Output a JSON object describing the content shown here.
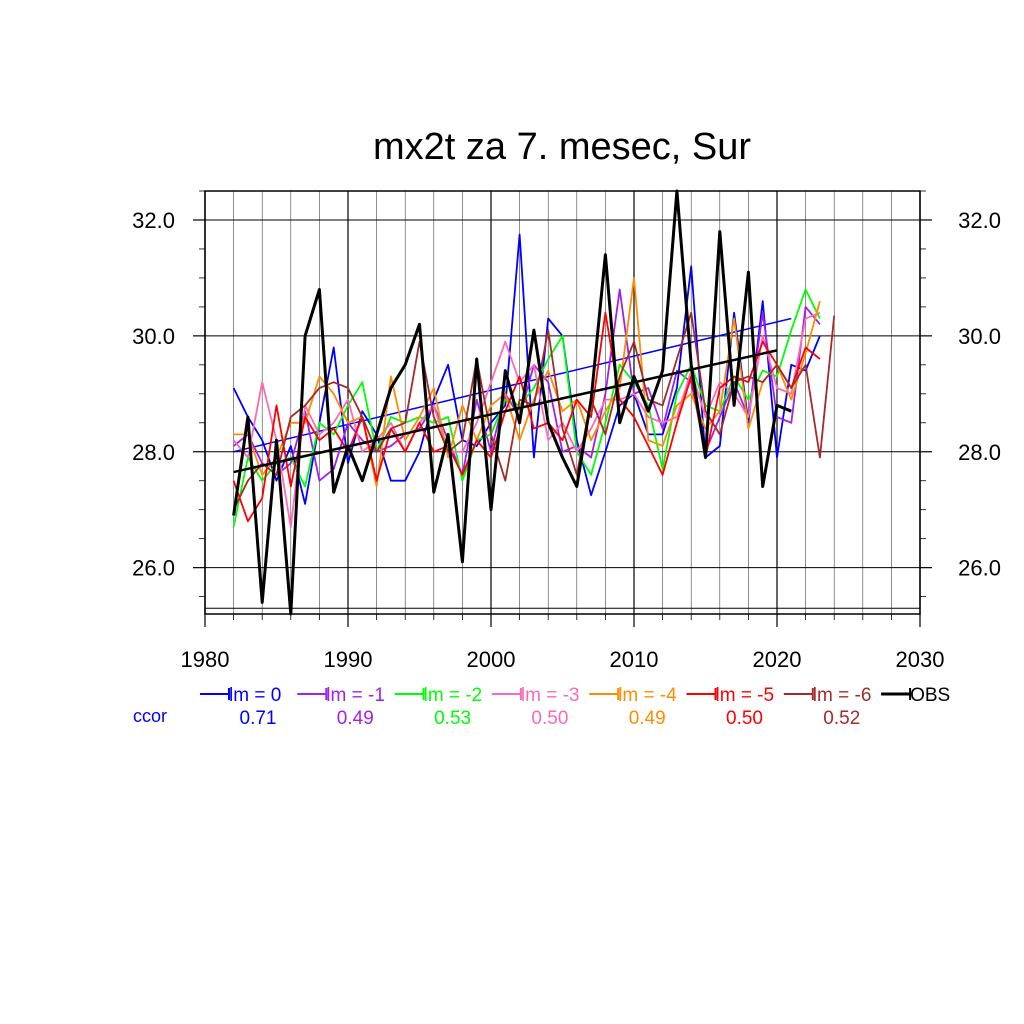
{
  "chart_data": {
    "type": "line",
    "title": "mx2t za 7. mesec, Sur",
    "xlim": [
      1980,
      2030
    ],
    "ylim": [
      25.2,
      32.5
    ],
    "x_ticks": [
      "1980",
      "1990",
      "2000",
      "2010",
      "2020",
      "2030"
    ],
    "y_ticks": [
      "26.0",
      "28.0",
      "30.0",
      "32.0"
    ],
    "grid": "on",
    "legend_position": "bottom",
    "ccor_label": "ccor",
    "series": [
      {
        "name": "lm = 0",
        "color": "#0000ff",
        "ccor": "0.71",
        "start_year": 1982,
        "values": [
          29.1,
          28.6,
          28.2,
          27.5,
          28.1,
          27.1,
          28.5,
          29.8,
          27.8,
          28.7,
          28.3,
          27.5,
          27.5,
          28.0,
          28.9,
          29.5,
          28.2,
          28.1,
          28.5,
          28.8,
          31.75,
          27.9,
          30.3,
          30.0,
          28.2,
          27.25,
          28.0,
          28.8,
          29.0,
          28.3,
          28.3,
          29.1,
          31.2,
          27.9,
          28.1,
          30.4,
          28.5,
          30.6,
          27.9,
          29.5,
          29.4,
          30.0
        ],
        "trend": [
          28.0,
          30.3
        ],
        "trend_years": [
          1982,
          2021
        ]
      },
      {
        "name": "lm = -1",
        "color": "#a020f0",
        "ccor": "0.49",
        "start_year": 1982,
        "values": [
          28.1,
          28.3,
          27.8,
          27.6,
          27.8,
          28.7,
          27.5,
          27.7,
          28.5,
          28.2,
          28.0,
          28.1,
          28.3,
          28.4,
          28.8,
          28.2,
          27.6,
          28.9,
          28.0,
          29.0,
          28.6,
          29.5,
          29.2,
          28.0,
          28.1,
          27.9,
          29.0,
          30.8,
          29.0,
          29.1,
          28.4,
          29.4,
          29.2,
          28.0,
          28.6,
          29.2,
          28.6,
          30.4,
          28.6,
          28.5,
          30.5,
          30.2
        ]
      },
      {
        "name": "lm = -2",
        "color": "#00ff00",
        "ccor": "0.53",
        "start_year": 1982,
        "values": [
          26.7,
          27.9,
          27.5,
          27.8,
          27.9,
          27.4,
          28.5,
          28.3,
          28.8,
          29.2,
          28.0,
          28.6,
          28.5,
          28.6,
          28.5,
          28.6,
          27.5,
          28.2,
          28.3,
          28.9,
          28.8,
          29.1,
          29.6,
          30.0,
          28.0,
          27.6,
          28.5,
          29.5,
          29.2,
          28.8,
          27.7,
          29.0,
          29.5,
          28.8,
          28.7,
          29.3,
          28.9,
          29.4,
          29.3,
          30.1,
          30.8,
          30.3
        ]
      },
      {
        "name": "lm = -3",
        "color": "#ff69b4",
        "ccor": "0.50",
        "start_year": 1982,
        "values": [
          28.2,
          27.9,
          29.2,
          28.2,
          26.7,
          28.8,
          28.3,
          28.5,
          28.9,
          28.0,
          28.2,
          28.5,
          28.0,
          28.5,
          28.8,
          28.0,
          28.0,
          28.5,
          29.2,
          29.9,
          29.2,
          29.5,
          28.2,
          28.5,
          28.0,
          28.4,
          28.9,
          28.9,
          29.0,
          28.6,
          28.5,
          28.6,
          29.4,
          28.6,
          29.2,
          29.0,
          28.6,
          30.0,
          29.1,
          29.0,
          30.3,
          30.4
        ]
      },
      {
        "name": "lm = -4",
        "color": "#ff8c00",
        "ccor": "0.49",
        "start_year": 1982,
        "values": [
          28.3,
          28.3,
          27.6,
          27.9,
          28.5,
          28.5,
          29.3,
          29.0,
          28.5,
          28.6,
          27.4,
          29.3,
          28.2,
          28.6,
          29.1,
          27.9,
          28.8,
          28.2,
          28.8,
          29.0,
          28.2,
          28.9,
          29.4,
          28.7,
          28.9,
          28.2,
          28.7,
          29.1,
          31.0,
          28.2,
          28.1,
          28.8,
          29.0,
          28.4,
          28.7,
          30.3,
          28.4,
          29.2,
          29.5,
          28.9,
          29.7,
          30.6
        ]
      },
      {
        "name": "lm = -5",
        "color": "#ff0000",
        "ccor": "0.50",
        "start_year": 1982,
        "values": [
          27.5,
          26.8,
          27.2,
          28.8,
          27.4,
          28.6,
          28.2,
          28.4,
          28.0,
          28.6,
          27.5,
          28.4,
          28.0,
          28.5,
          28.0,
          28.1,
          27.6,
          28.2,
          27.9,
          28.7,
          29.3,
          28.4,
          28.5,
          28.2,
          28.9,
          28.6,
          30.4,
          28.9,
          28.6,
          28.1,
          27.6,
          28.5,
          29.3,
          27.9,
          29.1,
          29.3,
          29.2,
          29.9,
          29.5,
          29.1,
          29.8,
          29.6
        ]
      },
      {
        "name": "lm = -6",
        "color": "#a52a2a",
        "ccor": "0.52",
        "start_year": 1982,
        "values": [
          27.0,
          27.5,
          27.8,
          27.6,
          28.6,
          28.8,
          29.1,
          29.2,
          29.1,
          28.6,
          28.0,
          28.4,
          28.5,
          29.9,
          28.6,
          28.0,
          28.2,
          29.6,
          28.3,
          27.5,
          28.9,
          28.8,
          30.1,
          28.4,
          27.6,
          28.9,
          28.3,
          29.3,
          29.9,
          28.9,
          28.8,
          29.6,
          30.4,
          28.7,
          28.3,
          29.2,
          29.3,
          29.2,
          29.5,
          29.1,
          29.5,
          27.9,
          30.35
        ]
      },
      {
        "name": "OBS",
        "color": "#000000",
        "ccor": "",
        "start_year": 1982,
        "values": [
          26.9,
          28.6,
          25.4,
          28.2,
          25.2,
          30.0,
          30.8,
          27.3,
          28.1,
          27.5,
          28.3,
          29.1,
          29.5,
          30.2,
          27.3,
          28.3,
          26.1,
          29.6,
          27.0,
          29.4,
          28.5,
          30.1,
          28.5,
          27.9,
          27.4,
          28.9,
          31.4,
          28.5,
          29.3,
          28.7,
          29.4,
          32.5,
          29.5,
          27.9,
          31.8,
          28.8,
          31.1,
          27.4,
          28.8,
          28.7
        ],
        "trend": [
          27.65,
          29.75
        ],
        "trend_years": [
          1982,
          2020
        ]
      }
    ]
  }
}
